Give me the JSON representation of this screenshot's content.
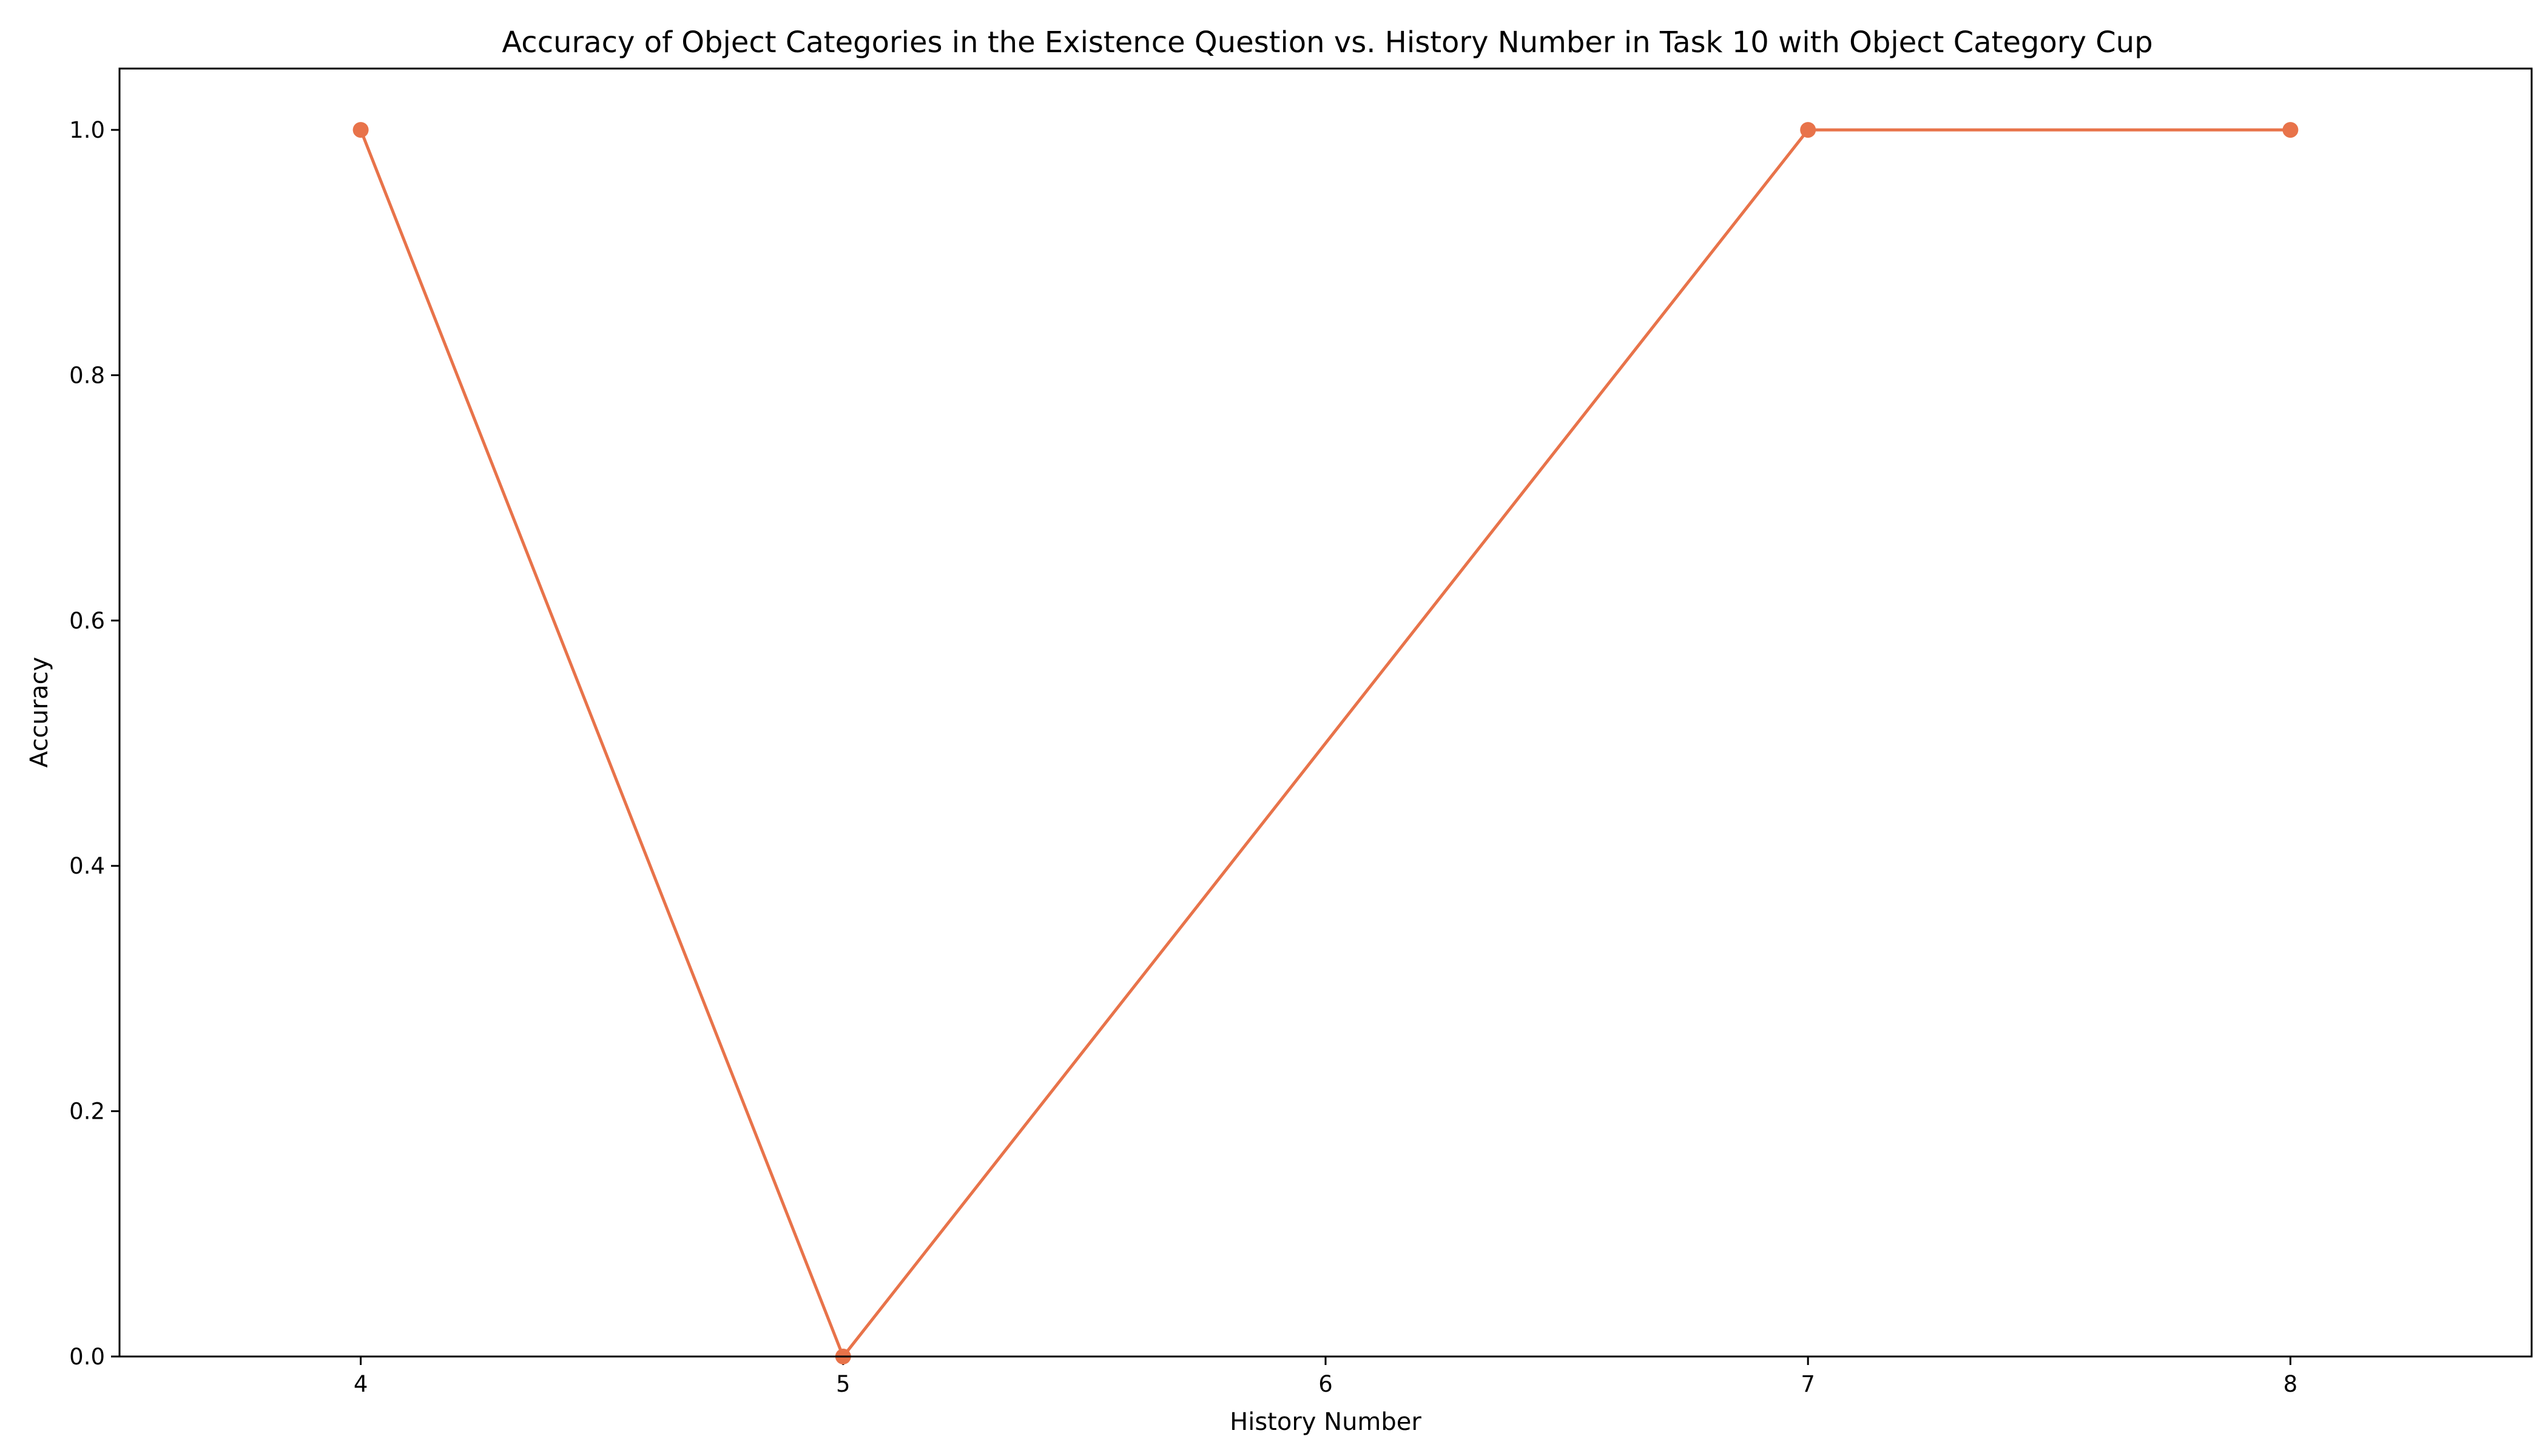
{
  "chart_data": {
    "type": "line",
    "title": "Accuracy of Object Categories in the Existence Question vs. History Number in Task 10 with Object Category Cup",
    "xlabel": "History Number",
    "ylabel": "Accuracy",
    "x": [
      4,
      5,
      7,
      8
    ],
    "xticks": [
      4,
      5,
      6,
      7,
      8
    ],
    "xlim": [
      3.5,
      8.5
    ],
    "ylim": [
      0,
      1.05
    ],
    "yticks": [
      0.0,
      0.2,
      0.4,
      0.6,
      0.8,
      1.0
    ],
    "ytick_labels": [
      "0.0",
      "0.2",
      "0.4",
      "0.6",
      "0.8",
      "1.0"
    ],
    "grid": false,
    "series": [
      {
        "values": [
          1.0,
          0.0,
          1.0,
          1.0
        ],
        "color": "#e8734a",
        "marker": "circle"
      }
    ]
  }
}
